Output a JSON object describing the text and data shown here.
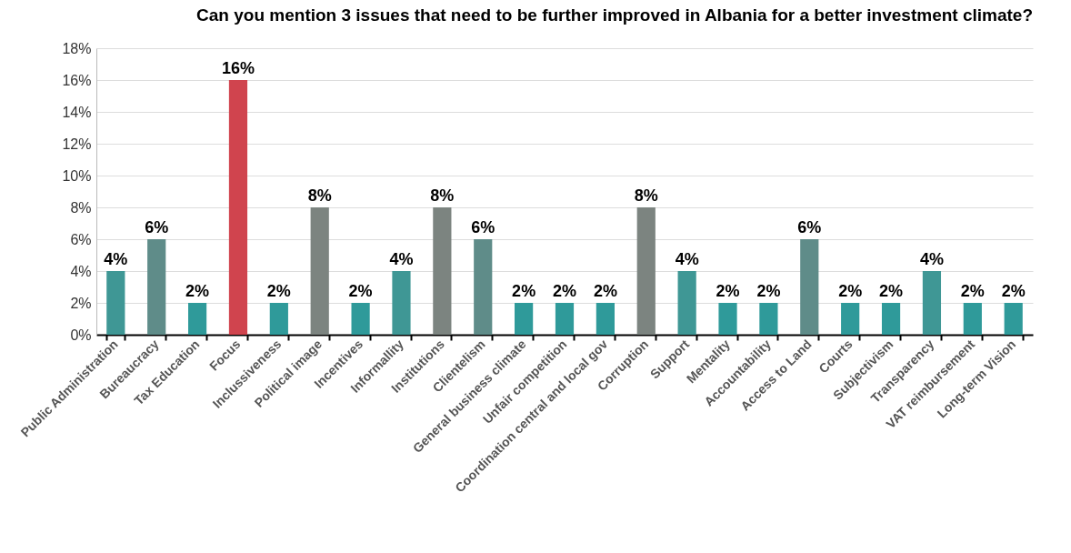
{
  "chart_data": {
    "type": "bar",
    "title": "Can you mention 3 issues that need to be further improved in Albania for a better investment climate?",
    "categories": [
      "Public Administration",
      "Bureaucracy",
      "Tax Education",
      "Focus",
      "Inclussiveness",
      "Political image",
      "Incentives",
      "Informallity",
      "Institutions",
      "Clientelism",
      "General business climate",
      "Unfair competition",
      "Coordination central and local gov",
      "Corruption",
      "Support",
      "Mentality",
      "Accountability",
      "Access to Land",
      "Courts",
      "Subjectivism",
      "Transparency",
      "VAT reimbursement",
      "Long-term Vision"
    ],
    "values": [
      4,
      6,
      2,
      16,
      2,
      8,
      2,
      4,
      8,
      6,
      2,
      2,
      2,
      8,
      4,
      2,
      2,
      6,
      2,
      2,
      4,
      2,
      2
    ],
    "value_labels": [
      "4%",
      "6%",
      "2%",
      "16%",
      "2%",
      "8%",
      "2%",
      "4%",
      "8%",
      "6%",
      "2%",
      "2%",
      "2%",
      "8%",
      "4%",
      "2%",
      "2%",
      "6%",
      "2%",
      "2%",
      "4%",
      "2%",
      "2%"
    ],
    "colors": [
      "#3f9795",
      "#5f8c89",
      "#2f9a9a",
      "#d0444e",
      "#2f9a9a",
      "#7c8480",
      "#2f9a9a",
      "#3f9795",
      "#7c8480",
      "#5f8c89",
      "#2f9a9a",
      "#2f9a9a",
      "#2f9a9a",
      "#7c8480",
      "#3f9795",
      "#2f9a9a",
      "#2f9a9a",
      "#5f8c89",
      "#2f9a9a",
      "#2f9a9a",
      "#3f9795",
      "#2f9a9a",
      "#2f9a9a"
    ],
    "ylim": [
      0,
      18
    ],
    "yticks": [
      {
        "value": 0,
        "label": "0%"
      },
      {
        "value": 2,
        "label": "2%"
      },
      {
        "value": 4,
        "label": "4%"
      },
      {
        "value": 6,
        "label": "6%"
      },
      {
        "value": 8,
        "label": "8%"
      },
      {
        "value": 10,
        "label": "10%"
      },
      {
        "value": 12,
        "label": "12%"
      },
      {
        "value": 14,
        "label": "14%"
      },
      {
        "value": 16,
        "label": "16%"
      },
      {
        "value": 18,
        "label": "18%"
      }
    ],
    "grid": "y"
  }
}
